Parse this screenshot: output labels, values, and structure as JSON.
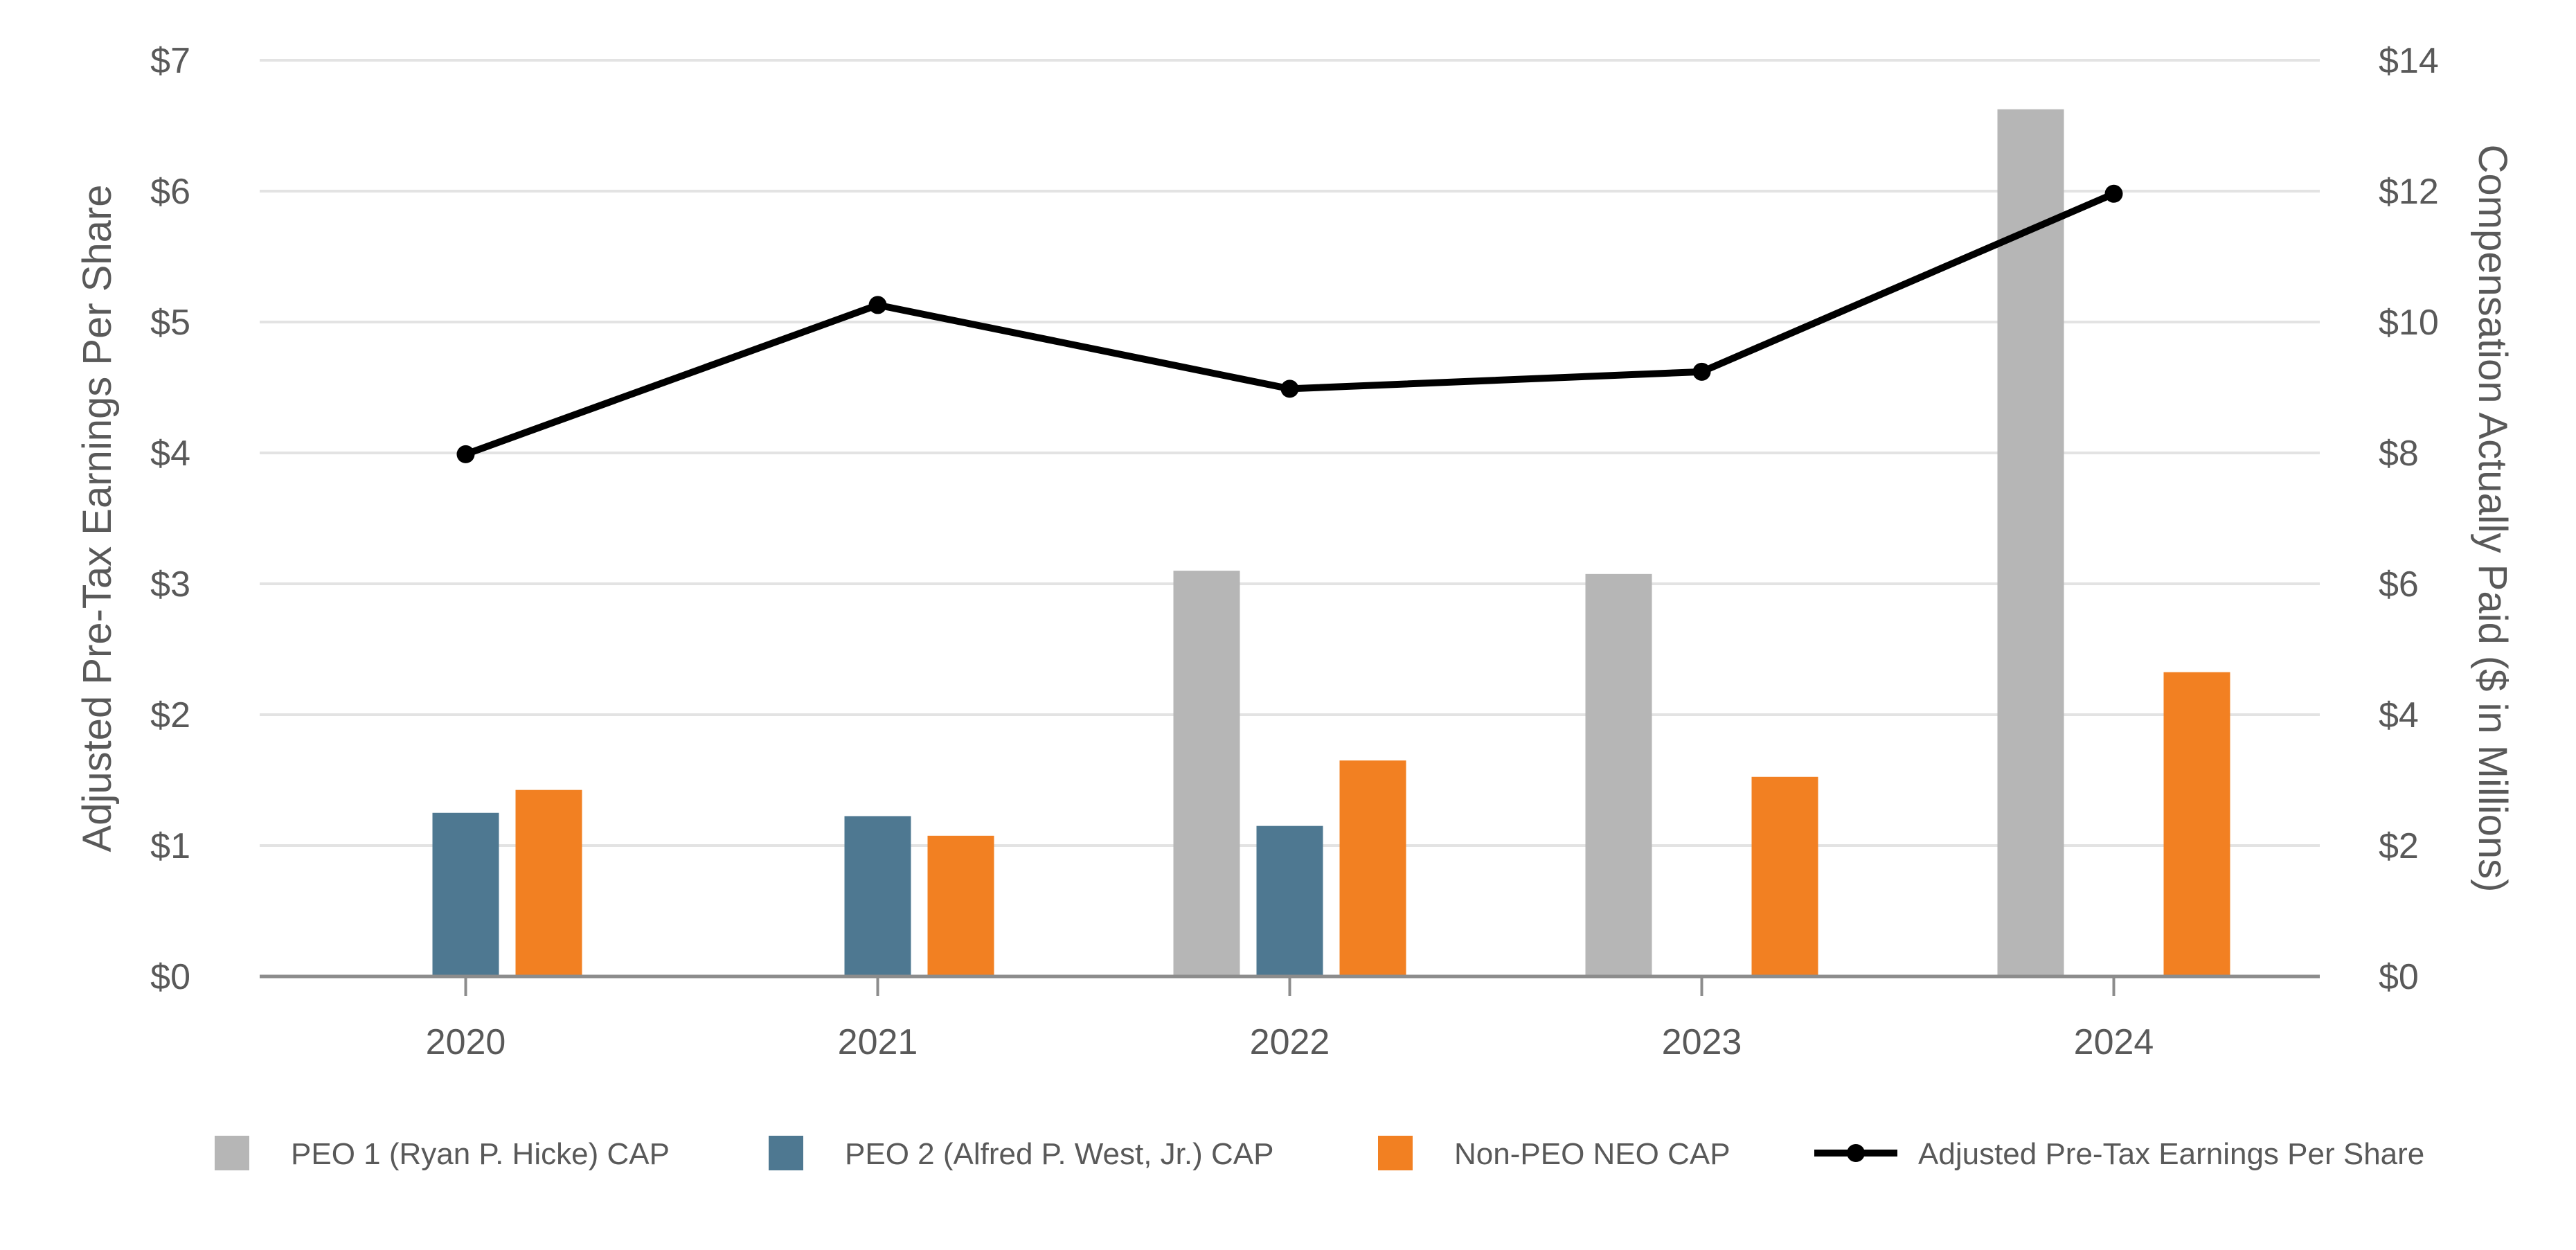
{
  "chart_data": {
    "type": "bar",
    "categories": [
      "2020",
      "2021",
      "2022",
      "2023",
      "2024"
    ],
    "ylabel_left": "Adjusted Pre-Tax Earnings Per Share",
    "ylabel_right": "Compensation Actually Paid ($ in Millions)",
    "ylim_left": [
      0,
      7
    ],
    "ylim_right": [
      0,
      14
    ],
    "yticks_left": [
      "$0",
      "$1",
      "$2",
      "$3",
      "$4",
      "$5",
      "$6",
      "$7"
    ],
    "yticks_right": [
      "$0",
      "$2",
      "$4",
      "$6",
      "$8",
      "$10",
      "$12",
      "$14"
    ],
    "grid": true,
    "legend_position": "bottom",
    "bar_series": [
      {
        "name": "PEO 1  (Ryan P. Hicke) CAP",
        "color": "#b6b6b6",
        "axis": "right",
        "values": [
          null,
          null,
          6.2,
          6.15,
          13.25
        ]
      },
      {
        "name": "PEO 2 (Alfred P. West, Jr.) CAP",
        "color": "#4e7891",
        "axis": "right",
        "values": [
          2.5,
          2.45,
          2.3,
          null,
          null
        ]
      },
      {
        "name": "Non-PEO NEO CAP",
        "color": "#f28022",
        "axis": "right",
        "values": [
          2.85,
          2.15,
          3.3,
          3.05,
          4.65
        ]
      }
    ],
    "line_series": [
      {
        "name": "Adjusted Pre-Tax Earnings Per Share",
        "color": "#000000",
        "axis": "left",
        "values": [
          3.99,
          5.13,
          4.49,
          4.62,
          5.98
        ]
      }
    ]
  }
}
